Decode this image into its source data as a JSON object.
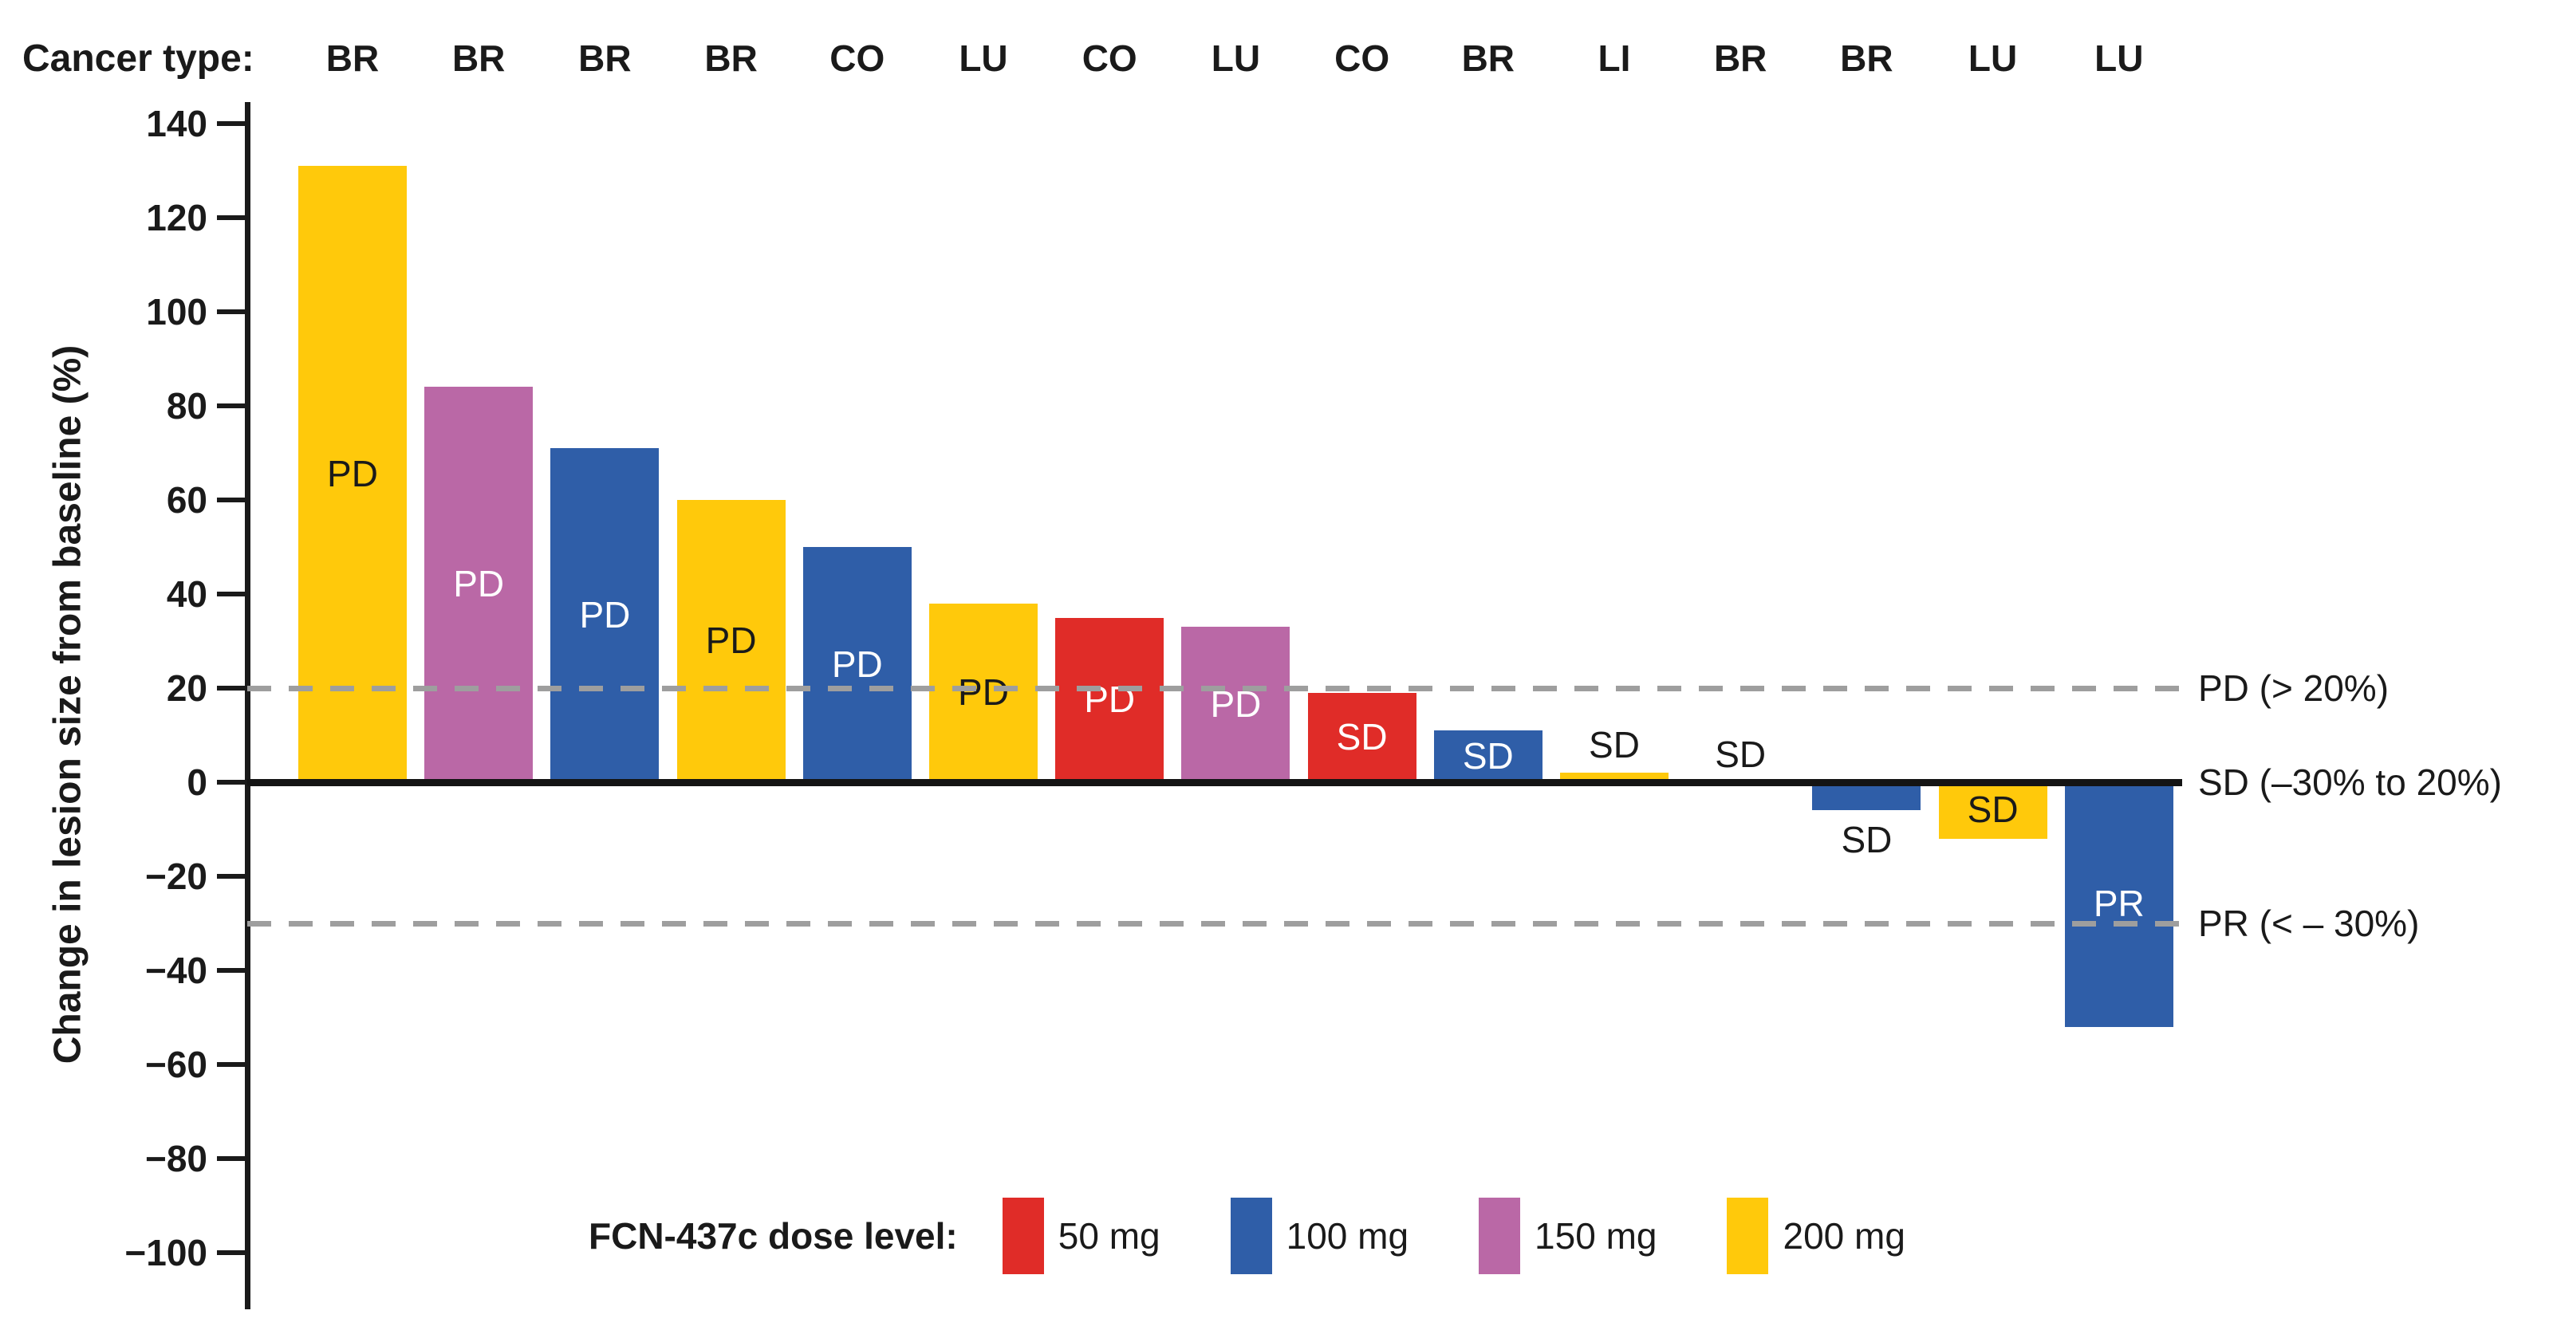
{
  "chart_data": {
    "type": "bar",
    "title": "",
    "top_axis_label": "Cancer type:",
    "ylabel": "Change in lesion size from baseline (%)",
    "xlabel": "",
    "grid": false,
    "legend_position": "bottom-center",
    "ylim": [
      -110,
      148
    ],
    "yticks": [
      140,
      120,
      100,
      80,
      60,
      40,
      20,
      0,
      -20,
      -40,
      -60,
      -80,
      -100
    ],
    "ytick_labels": [
      "140",
      "120",
      "100",
      "80",
      "60",
      "40",
      "20",
      "0",
      "−20",
      "−40",
      "−60",
      "−80",
      "−100"
    ],
    "categories": [
      "BR",
      "BR",
      "BR",
      "BR",
      "CO",
      "LU",
      "CO",
      "LU",
      "CO",
      "BR",
      "LI",
      "BR",
      "BR",
      "LU",
      "LU"
    ],
    "series": [
      {
        "name": "Change in lesion size from baseline (%)",
        "values": [
          131,
          84,
          71,
          60,
          50,
          38,
          35,
          33,
          19,
          11,
          2,
          0,
          -6,
          -12,
          -52
        ]
      }
    ],
    "bars": [
      {
        "cancer_type": "BR",
        "value": 131,
        "dose_mg": "200 mg",
        "color_key": "yellow",
        "response": "PD",
        "label_placement": "inside"
      },
      {
        "cancer_type": "BR",
        "value": 84,
        "dose_mg": "150 mg",
        "color_key": "purple",
        "response": "PD",
        "label_placement": "inside"
      },
      {
        "cancer_type": "BR",
        "value": 71,
        "dose_mg": "100 mg",
        "color_key": "blue",
        "response": "PD",
        "label_placement": "inside"
      },
      {
        "cancer_type": "BR",
        "value": 60,
        "dose_mg": "200 mg",
        "color_key": "yellow",
        "response": "PD",
        "label_placement": "inside"
      },
      {
        "cancer_type": "CO",
        "value": 50,
        "dose_mg": "100 mg",
        "color_key": "blue",
        "response": "PD",
        "label_placement": "inside"
      },
      {
        "cancer_type": "LU",
        "value": 38,
        "dose_mg": "200 mg",
        "color_key": "yellow",
        "response": "PD",
        "label_placement": "inside"
      },
      {
        "cancer_type": "CO",
        "value": 35,
        "dose_mg": "50 mg",
        "color_key": "red",
        "response": "PD",
        "label_placement": "inside"
      },
      {
        "cancer_type": "LU",
        "value": 33,
        "dose_mg": "150 mg",
        "color_key": "purple",
        "response": "PD",
        "label_placement": "inside"
      },
      {
        "cancer_type": "CO",
        "value": 19,
        "dose_mg": "50 mg",
        "color_key": "red",
        "response": "SD",
        "label_placement": "inside"
      },
      {
        "cancer_type": "BR",
        "value": 11,
        "dose_mg": "100 mg",
        "color_key": "blue",
        "response": "SD",
        "label_placement": "inside"
      },
      {
        "cancer_type": "LI",
        "value": 2,
        "dose_mg": "200 mg",
        "color_key": "yellow",
        "response": "SD",
        "label_placement": "above"
      },
      {
        "cancer_type": "BR",
        "value": 0,
        "dose_mg": null,
        "color_key": null,
        "response": "SD",
        "label_placement": "above"
      },
      {
        "cancer_type": "BR",
        "value": -6,
        "dose_mg": "100 mg",
        "color_key": "blue",
        "response": "SD",
        "label_placement": "below"
      },
      {
        "cancer_type": "LU",
        "value": -12,
        "dose_mg": "200 mg",
        "color_key": "yellow",
        "response": "SD",
        "label_placement": "inside"
      },
      {
        "cancer_type": "LU",
        "value": -52,
        "dose_mg": "100 mg",
        "color_key": "blue",
        "response": "PR",
        "label_placement": "inside"
      }
    ],
    "reference_lines": [
      {
        "value": 20,
        "style": "dashed",
        "label": "PD (> 20%)"
      },
      {
        "value": 0,
        "style": "solid",
        "label": "SD (–30% to 20%)"
      },
      {
        "value": -30,
        "style": "dashed",
        "label": "PR (< – 30%)"
      }
    ],
    "legend": {
      "title": "FCN-437c dose level:",
      "entries": [
        {
          "label": "50 mg",
          "color_key": "red"
        },
        {
          "label": "100 mg",
          "color_key": "blue"
        },
        {
          "label": "150 mg",
          "color_key": "purple"
        },
        {
          "label": "200 mg",
          "color_key": "yellow"
        }
      ]
    }
  },
  "colors": {
    "red": "#E02C28",
    "blue": "#2F5EA8",
    "purple": "#BA68A6",
    "yellow": "#FFC90B",
    "dashed_line": "#9E9E9E",
    "axis": "#1A1A1A",
    "label_on_dark": "#FFFFFF",
    "label_on_light": "#1A1A1A"
  }
}
